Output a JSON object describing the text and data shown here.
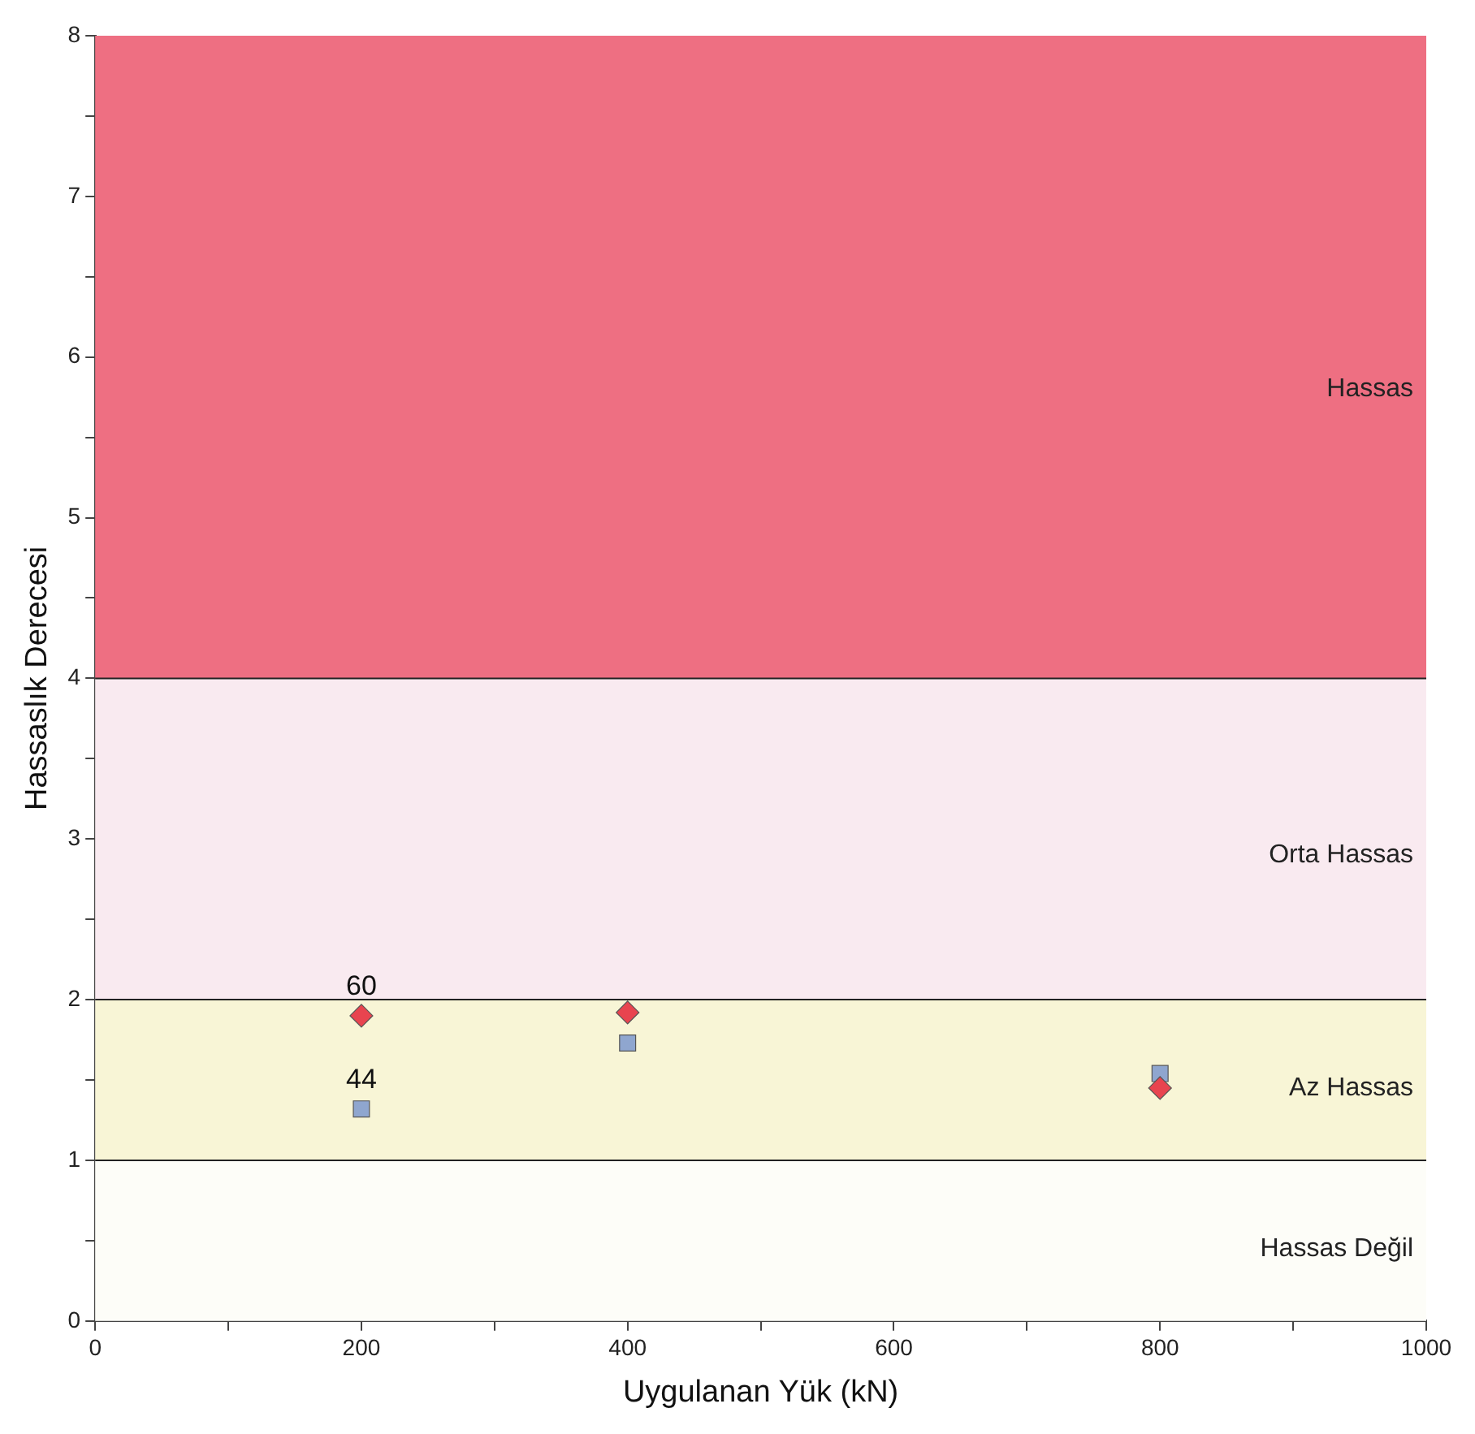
{
  "chart_data": {
    "type": "scatter",
    "xlabel": "Uygulanan Yük (kN)",
    "ylabel": "Hassaslık Derecesi",
    "xlim": [
      0,
      1000
    ],
    "xticks": [
      0,
      {
        "value": 100,
        "label": null
      },
      200,
      {
        "value": 300,
        "label": null
      },
      400,
      {
        "value": 500,
        "label": null
      },
      600,
      {
        "value": 700,
        "label": null
      },
      800,
      {
        "value": 900,
        "label": null
      },
      1000
    ],
    "ylim": [
      0,
      8
    ],
    "yticks": [
      0,
      {
        "value": 0.5,
        "label": null
      },
      1,
      {
        "value": 1.5,
        "label": null
      },
      2,
      {
        "value": 2.5,
        "label": null
      },
      3,
      {
        "value": 3.5,
        "label": null
      },
      4,
      {
        "value": 4.5,
        "label": null
      },
      5,
      {
        "value": 5.5,
        "label": null
      },
      6,
      {
        "value": 6.5,
        "label": null
      },
      7,
      {
        "value": 7.5,
        "label": null
      },
      8
    ],
    "grid": false,
    "legend": false,
    "series": [
      {
        "color": "#e8444f",
        "marker": "diamond",
        "x": [
          200,
          400,
          800
        ],
        "values": [
          1.9,
          1.92,
          1.45
        ]
      },
      {
        "color": "#8fa6cf",
        "marker": "square",
        "x": [
          200,
          400,
          800
        ],
        "values": [
          1.32,
          1.73,
          1.54
        ]
      }
    ],
    "bands": [
      {
        "axis": "y",
        "from": 0,
        "to": 1,
        "label": "Hassas Değil",
        "color": "#fdfdf8"
      },
      {
        "axis": "y",
        "from": 1,
        "to": 2,
        "label": "Az Hassas",
        "color": "#f8f5d6"
      },
      {
        "axis": "y",
        "from": 2,
        "to": 4,
        "label": "Orta Hassas",
        "color": "#f9eaf0"
      },
      {
        "axis": "y",
        "from": 4,
        "to": 8,
        "label": "Hassas",
        "color": "#ee6f82"
      }
    ],
    "ref_lines": [
      {
        "axis": "y",
        "value": 1,
        "color": "#222222"
      },
      {
        "axis": "y",
        "value": 2,
        "color": "#222222"
      },
      {
        "axis": "y",
        "value": 4,
        "color": "#222222"
      }
    ],
    "annotations": [
      {
        "text": "60",
        "x": 200,
        "y": 1.9
      },
      {
        "text": "44",
        "x": 200,
        "y": 1.32
      }
    ]
  }
}
